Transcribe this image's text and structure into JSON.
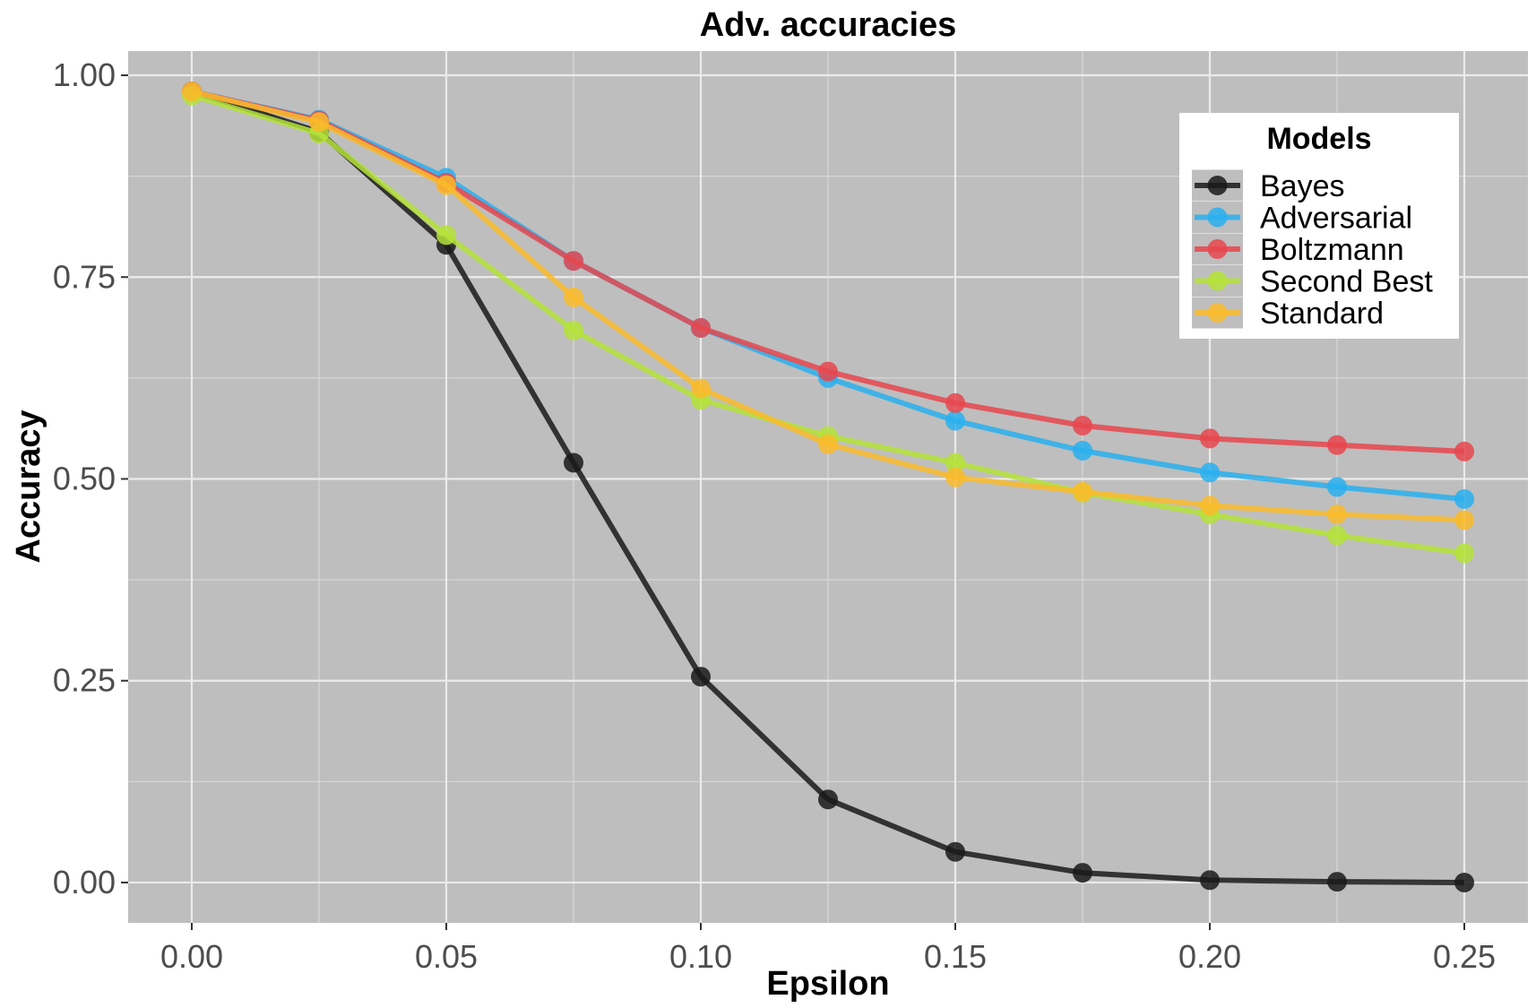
{
  "chart_data": {
    "type": "line",
    "title": "Adv. accuracies",
    "xlabel": "Epsilon",
    "ylabel": "Accuracy",
    "x": [
      0.0,
      0.025,
      0.05,
      0.075,
      0.1,
      0.125,
      0.15,
      0.175,
      0.2,
      0.225,
      0.25
    ],
    "xlim": [
      -0.0125,
      0.2625
    ],
    "ylim": [
      -0.05,
      1.03
    ],
    "xticks": [
      0.0,
      0.05,
      0.1,
      0.15,
      0.2,
      0.25
    ],
    "xtick_labels": [
      "0.00",
      "0.05",
      "0.10",
      "0.15",
      "0.20",
      "0.25"
    ],
    "yticks": [
      0.0,
      0.25,
      0.5,
      0.75,
      1.0
    ],
    "ytick_labels": [
      "0.00",
      "0.25",
      "0.50",
      "0.75",
      "1.00"
    ],
    "legend": {
      "title": "Models",
      "placement": "top-right"
    },
    "background": "#bebebe",
    "grid": true,
    "series": [
      {
        "name": "Bayes",
        "color": "#1a1a1a",
        "values": [
          0.98,
          0.93,
          0.79,
          0.52,
          0.255,
          0.103,
          0.038,
          0.012,
          0.003,
          0.001,
          0.0
        ]
      },
      {
        "name": "Adversarial",
        "color": "#29b0ee",
        "values": [
          0.98,
          0.945,
          0.873,
          0.77,
          0.687,
          0.625,
          0.572,
          0.535,
          0.508,
          0.49,
          0.475
        ]
      },
      {
        "name": "Boltzmann",
        "color": "#e8464e",
        "values": [
          0.98,
          0.944,
          0.867,
          0.77,
          0.687,
          0.633,
          0.594,
          0.566,
          0.55,
          0.542,
          0.534
        ]
      },
      {
        "name": "Second Best",
        "color": "#b5e33a",
        "values": [
          0.975,
          0.928,
          0.802,
          0.684,
          0.598,
          0.553,
          0.52,
          0.483,
          0.456,
          0.43,
          0.408
        ]
      },
      {
        "name": "Standard",
        "color": "#f9bb2a",
        "values": [
          0.98,
          0.942,
          0.864,
          0.725,
          0.612,
          0.543,
          0.502,
          0.484,
          0.467,
          0.456,
          0.449
        ]
      }
    ]
  }
}
